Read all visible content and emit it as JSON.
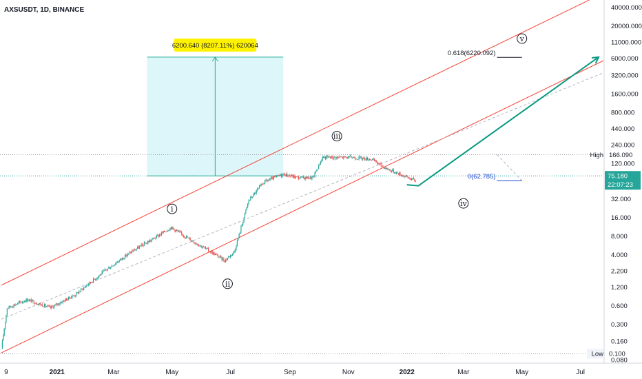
{
  "chart_data": {
    "type": "candlestick",
    "title": "AXSUSDT, 1D, BINANCE",
    "y_scale": "log",
    "ylim": [
      0.072,
      50000
    ],
    "y_ticks": [
      "40000.000",
      "20000.000",
      "11000.000",
      "6000.000",
      "3200.000",
      "1600.000",
      "800.000",
      "440.000",
      "240.000",
      "120.000",
      "32.000",
      "16.000",
      "8.000",
      "4.000",
      "2.200",
      "1.200",
      "0.600",
      "0.300",
      "0.160",
      "0.080"
    ],
    "x_ticks": [
      "9",
      "2021",
      "Mar",
      "May",
      "Jul",
      "Sep",
      "Nov",
      "2022",
      "Mar",
      "May",
      "Jul"
    ],
    "x_range": [
      "2020-11-04",
      "2022-07-25"
    ],
    "price_path": [
      [
        "2020-11-04",
        0.12
      ],
      [
        "2020-11-10",
        0.55
      ],
      [
        "2020-12-01",
        0.75
      ],
      [
        "2020-12-25",
        0.55
      ],
      [
        "2021-01-20",
        0.9
      ],
      [
        "2021-02-20",
        2.2
      ],
      [
        "2021-03-20",
        4.5
      ],
      [
        "2021-04-10",
        7.0
      ],
      [
        "2021-04-30",
        11.0
      ],
      [
        "2021-05-20",
        7.0
      ],
      [
        "2021-06-10",
        4.5
      ],
      [
        "2021-06-25",
        3.2
      ],
      [
        "2021-07-05",
        4.5
      ],
      [
        "2021-07-20",
        30.0
      ],
      [
        "2021-08-05",
        60.0
      ],
      [
        "2021-08-25",
        80.0
      ],
      [
        "2021-09-10",
        70.0
      ],
      [
        "2021-09-25",
        70.0
      ],
      [
        "2021-10-05",
        150.0
      ],
      [
        "2021-11-05",
        150.0
      ],
      [
        "2021-11-25",
        140.0
      ],
      [
        "2021-12-10",
        100.0
      ],
      [
        "2022-01-10",
        62.785
      ]
    ],
    "markers": [
      {
        "label": "High",
        "value": "166.090"
      },
      {
        "label": "Low",
        "value": "0.100"
      }
    ],
    "last_price": "75.180",
    "countdown": "22:07:23",
    "measure": {
      "label": "6200.640 (8207.11%) 620064",
      "from": 75.18,
      "to": 6275.82
    },
    "fib": [
      {
        "label": "0.618(6220.092)",
        "value": 6220.092
      },
      {
        "label": "0(62.785)",
        "value": 62.785
      }
    ],
    "waves": [
      {
        "label": "i",
        "date": "2021-05-01",
        "value": 22
      },
      {
        "label": "ii",
        "date": "2021-06-28",
        "value": 1.35
      },
      {
        "label": "iii",
        "date": "2021-10-20",
        "value": 330
      },
      {
        "label": "iv",
        "date": "2022-03-01",
        "value": 27
      },
      {
        "label": "v",
        "date": "2022-05-01",
        "value": 12500
      }
    ],
    "colors": {
      "up": "#26a69a",
      "down": "#ef5350",
      "channel": "#f44336",
      "projection": "#089981",
      "measure_fill": "#d4f4f8",
      "label_bg": "#fff200",
      "fib_line": "#1848cc",
      "last_price": "#26a69a"
    }
  }
}
